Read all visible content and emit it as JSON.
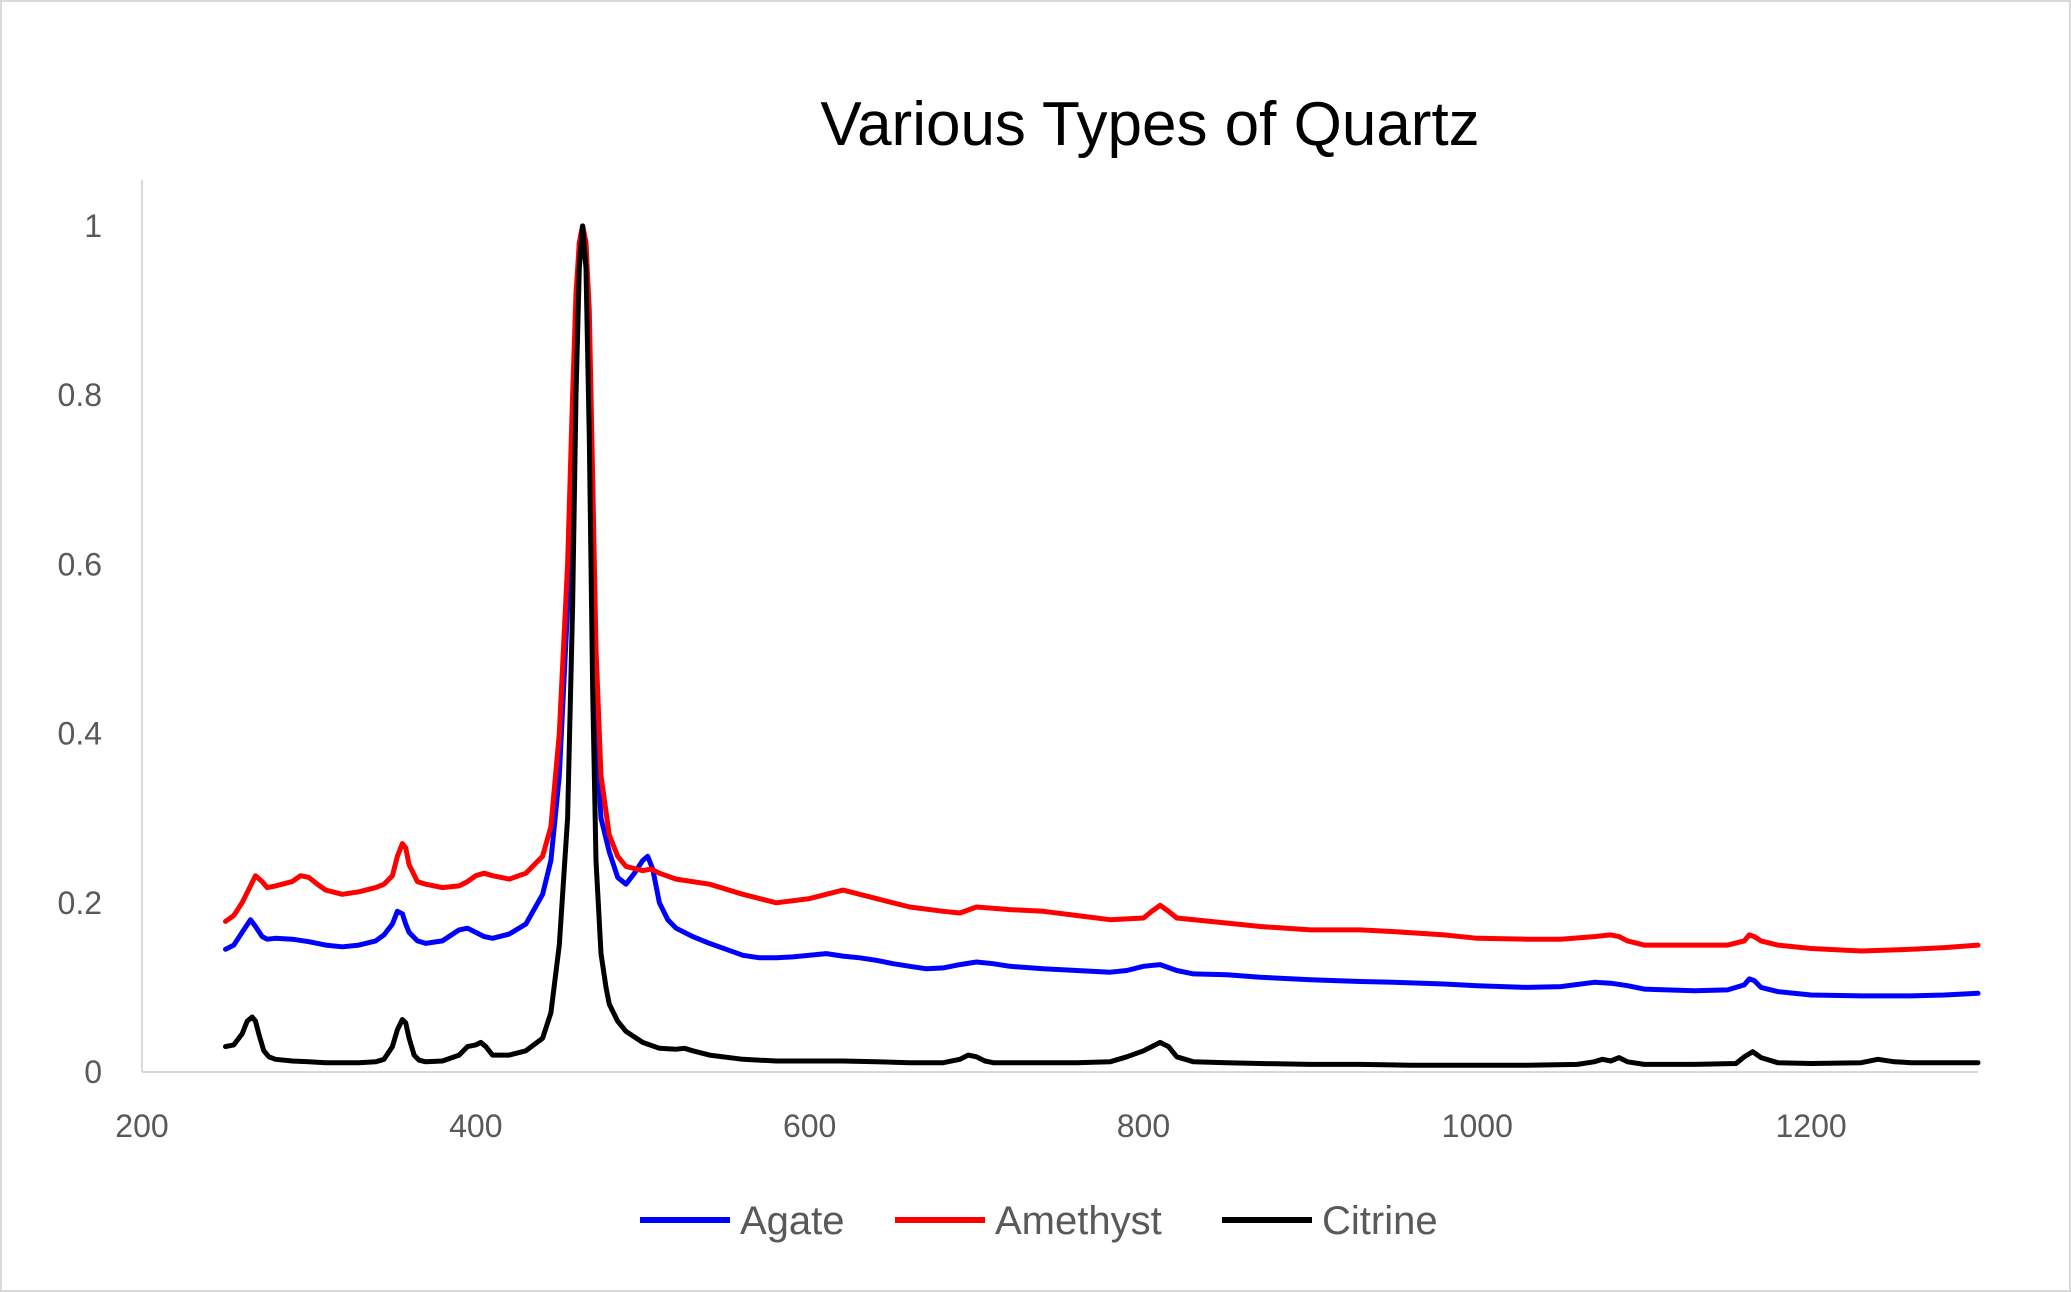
{
  "chart_data": {
    "type": "line",
    "title": "Various Types of Quartz",
    "xlabel": "",
    "ylabel": "",
    "xlim": [
      200,
      1300
    ],
    "ylim": [
      0,
      1
    ],
    "x_ticks": [
      200,
      400,
      600,
      800,
      1000,
      1200
    ],
    "x_tick_labels": [
      "200",
      "400",
      "600",
      "800",
      "1000",
      "1200"
    ],
    "y_ticks": [
      0,
      0.2,
      0.4,
      0.6,
      0.8,
      1
    ],
    "y_tick_labels": [
      "0",
      "0.2",
      "0.4",
      "0.6",
      "0.8",
      "1"
    ],
    "grid": false,
    "legend_position": "bottom",
    "series": [
      {
        "name": "Agate",
        "color": "#0000ff",
        "x": [
          250,
          255,
          260,
          265,
          268,
          272,
          275,
          280,
          290,
          300,
          310,
          320,
          330,
          340,
          345,
          350,
          353,
          356,
          358,
          360,
          365,
          370,
          380,
          390,
          395,
          400,
          405,
          410,
          420,
          430,
          440,
          445,
          450,
          455,
          458,
          460,
          462,
          464,
          466,
          468,
          470,
          472,
          475,
          480,
          485,
          490,
          495,
          500,
          503,
          506,
          510,
          515,
          520,
          530,
          540,
          550,
          560,
          570,
          580,
          590,
          600,
          610,
          620,
          630,
          640,
          650,
          660,
          670,
          680,
          690,
          700,
          710,
          720,
          740,
          760,
          780,
          790,
          800,
          810,
          820,
          830,
          850,
          870,
          900,
          930,
          950,
          980,
          1000,
          1030,
          1050,
          1070,
          1080,
          1090,
          1100,
          1130,
          1150,
          1160,
          1163,
          1166,
          1170,
          1180,
          1200,
          1230,
          1260,
          1280,
          1300
        ],
        "y": [
          0.145,
          0.15,
          0.165,
          0.18,
          0.172,
          0.16,
          0.157,
          0.158,
          0.157,
          0.154,
          0.15,
          0.148,
          0.15,
          0.155,
          0.162,
          0.175,
          0.19,
          0.187,
          0.175,
          0.165,
          0.155,
          0.152,
          0.155,
          0.168,
          0.17,
          0.165,
          0.16,
          0.158,
          0.163,
          0.175,
          0.21,
          0.25,
          0.35,
          0.55,
          0.75,
          0.9,
          0.98,
          1.0,
          0.98,
          0.85,
          0.6,
          0.4,
          0.3,
          0.26,
          0.23,
          0.222,
          0.235,
          0.25,
          0.255,
          0.24,
          0.2,
          0.18,
          0.17,
          0.16,
          0.152,
          0.145,
          0.138,
          0.135,
          0.135,
          0.136,
          0.138,
          0.14,
          0.137,
          0.135,
          0.132,
          0.128,
          0.125,
          0.122,
          0.123,
          0.127,
          0.13,
          0.128,
          0.125,
          0.122,
          0.12,
          0.118,
          0.12,
          0.125,
          0.127,
          0.12,
          0.116,
          0.115,
          0.112,
          0.109,
          0.107,
          0.106,
          0.104,
          0.102,
          0.1,
          0.101,
          0.106,
          0.105,
          0.102,
          0.098,
          0.096,
          0.097,
          0.103,
          0.11,
          0.108,
          0.1,
          0.095,
          0.091,
          0.09,
          0.09,
          0.091,
          0.093
        ]
      },
      {
        "name": "Amethyst",
        "color": "#ff0000",
        "x": [
          250,
          255,
          260,
          265,
          268,
          272,
          275,
          280,
          290,
          295,
          300,
          305,
          310,
          320,
          330,
          340,
          345,
          350,
          353,
          356,
          358,
          360,
          365,
          370,
          380,
          390,
          395,
          400,
          405,
          410,
          420,
          430,
          440,
          445,
          450,
          455,
          458,
          460,
          462,
          464,
          466,
          468,
          470,
          472,
          475,
          480,
          485,
          490,
          500,
          505,
          510,
          520,
          540,
          560,
          580,
          600,
          610,
          620,
          640,
          660,
          680,
          690,
          700,
          720,
          740,
          760,
          780,
          800,
          805,
          810,
          815,
          820,
          840,
          870,
          900,
          930,
          950,
          980,
          1000,
          1030,
          1050,
          1070,
          1080,
          1085,
          1090,
          1100,
          1130,
          1150,
          1160,
          1163,
          1166,
          1170,
          1180,
          1200,
          1230,
          1260,
          1280,
          1300
        ],
        "y": [
          0.178,
          0.185,
          0.2,
          0.22,
          0.232,
          0.225,
          0.218,
          0.22,
          0.225,
          0.232,
          0.23,
          0.222,
          0.215,
          0.21,
          0.213,
          0.218,
          0.222,
          0.232,
          0.255,
          0.27,
          0.265,
          0.245,
          0.225,
          0.222,
          0.218,
          0.22,
          0.225,
          0.232,
          0.235,
          0.232,
          0.228,
          0.235,
          0.255,
          0.29,
          0.4,
          0.6,
          0.8,
          0.92,
          0.98,
          1.0,
          0.98,
          0.9,
          0.7,
          0.5,
          0.35,
          0.28,
          0.255,
          0.243,
          0.238,
          0.24,
          0.235,
          0.228,
          0.222,
          0.21,
          0.2,
          0.205,
          0.21,
          0.215,
          0.205,
          0.195,
          0.19,
          0.188,
          0.195,
          0.192,
          0.19,
          0.185,
          0.18,
          0.182,
          0.19,
          0.197,
          0.19,
          0.182,
          0.178,
          0.172,
          0.168,
          0.168,
          0.166,
          0.162,
          0.158,
          0.157,
          0.157,
          0.16,
          0.162,
          0.16,
          0.155,
          0.15,
          0.15,
          0.15,
          0.155,
          0.162,
          0.16,
          0.155,
          0.15,
          0.146,
          0.143,
          0.145,
          0.147,
          0.15
        ]
      },
      {
        "name": "Citrine",
        "color": "#000000",
        "x": [
          250,
          255,
          260,
          263,
          266,
          268,
          270,
          273,
          276,
          280,
          290,
          300,
          310,
          320,
          330,
          340,
          345,
          350,
          353,
          356,
          358,
          360,
          363,
          366,
          370,
          380,
          390,
          395,
          400,
          403,
          406,
          410,
          420,
          430,
          440,
          445,
          450,
          455,
          458,
          460,
          462,
          464,
          466,
          468,
          470,
          472,
          475,
          478,
          480,
          485,
          490,
          500,
          510,
          520,
          525,
          530,
          540,
          560,
          580,
          600,
          620,
          640,
          660,
          680,
          690,
          695,
          700,
          705,
          710,
          720,
          740,
          760,
          780,
          790,
          800,
          805,
          810,
          815,
          820,
          830,
          850,
          870,
          900,
          930,
          960,
          1000,
          1030,
          1060,
          1070,
          1075,
          1080,
          1085,
          1090,
          1100,
          1130,
          1155,
          1160,
          1165,
          1170,
          1180,
          1200,
          1230,
          1240,
          1250,
          1260,
          1300
        ],
        "y": [
          0.03,
          0.032,
          0.045,
          0.06,
          0.065,
          0.06,
          0.045,
          0.025,
          0.018,
          0.015,
          0.013,
          0.012,
          0.011,
          0.011,
          0.011,
          0.012,
          0.015,
          0.03,
          0.05,
          0.062,
          0.058,
          0.04,
          0.02,
          0.014,
          0.012,
          0.013,
          0.02,
          0.03,
          0.032,
          0.035,
          0.03,
          0.02,
          0.02,
          0.025,
          0.04,
          0.07,
          0.15,
          0.3,
          0.55,
          0.8,
          0.95,
          1.0,
          0.95,
          0.75,
          0.45,
          0.25,
          0.14,
          0.1,
          0.08,
          0.06,
          0.048,
          0.035,
          0.028,
          0.027,
          0.028,
          0.025,
          0.02,
          0.015,
          0.013,
          0.013,
          0.013,
          0.012,
          0.011,
          0.011,
          0.015,
          0.02,
          0.018,
          0.013,
          0.011,
          0.011,
          0.011,
          0.011,
          0.012,
          0.018,
          0.025,
          0.03,
          0.035,
          0.03,
          0.018,
          0.012,
          0.011,
          0.01,
          0.009,
          0.009,
          0.008,
          0.008,
          0.008,
          0.009,
          0.012,
          0.015,
          0.013,
          0.017,
          0.012,
          0.009,
          0.009,
          0.01,
          0.018,
          0.024,
          0.017,
          0.011,
          0.01,
          0.011,
          0.015,
          0.012,
          0.011,
          0.011
        ]
      }
    ]
  }
}
